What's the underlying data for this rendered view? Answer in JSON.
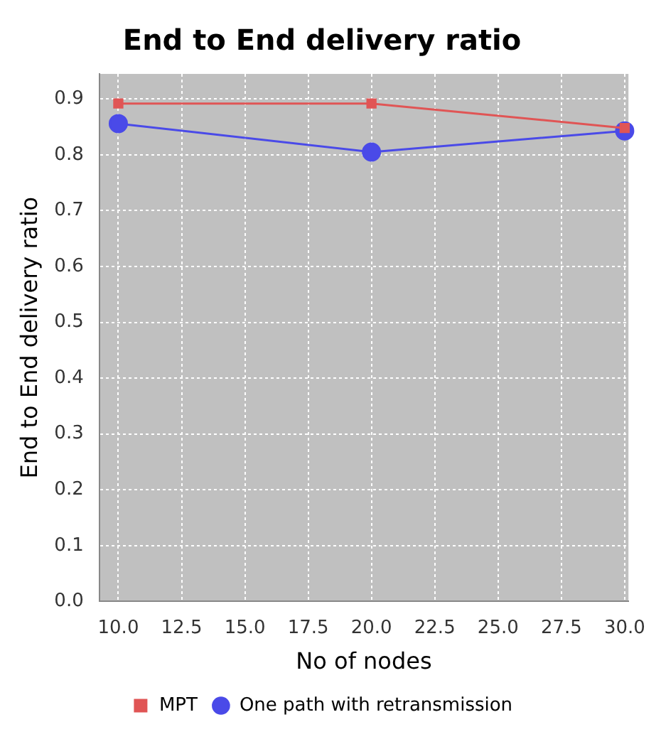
{
  "chart_data": {
    "type": "line",
    "title": "End to End delivery ratio",
    "xlabel": "No of nodes",
    "ylabel": "End to End delivery ratio",
    "x": [
      10,
      20,
      30
    ],
    "series": [
      {
        "name": "MPT",
        "color": "#e05555",
        "marker": "square",
        "values": [
          0.892,
          0.892,
          0.848
        ]
      },
      {
        "name": "One path with retransmission",
        "color": "#4a4ae8",
        "marker": "circle",
        "values": [
          0.856,
          0.805,
          0.843
        ]
      }
    ],
    "xlim": [
      9.25,
      30.15
    ],
    "xticks": [
      {
        "value": 10,
        "label": "10.0"
      },
      {
        "value": 12.5,
        "label": "12.5"
      },
      {
        "value": 15,
        "label": "15.0"
      },
      {
        "value": 17.5,
        "label": "17.5"
      },
      {
        "value": 20,
        "label": "20.0"
      },
      {
        "value": 22.5,
        "label": "22.5"
      },
      {
        "value": 25,
        "label": "25.0"
      },
      {
        "value": 27.5,
        "label": "27.5"
      },
      {
        "value": 30,
        "label": "30.0"
      }
    ],
    "ylim": [
      0,
      0.945
    ],
    "yticks": [
      {
        "value": 0,
        "label": "0.0"
      },
      {
        "value": 0.1,
        "label": "0.1"
      },
      {
        "value": 0.2,
        "label": "0.2"
      },
      {
        "value": 0.3,
        "label": "0.3"
      },
      {
        "value": 0.4,
        "label": "0.4"
      },
      {
        "value": 0.5,
        "label": "0.5"
      },
      {
        "value": 0.6,
        "label": "0.6"
      },
      {
        "value": 0.7,
        "label": "0.7"
      },
      {
        "value": 0.8,
        "label": "0.8"
      },
      {
        "value": 0.9,
        "label": "0.9"
      }
    ],
    "grid": true,
    "legend": "bottom",
    "line_style": "solid"
  }
}
